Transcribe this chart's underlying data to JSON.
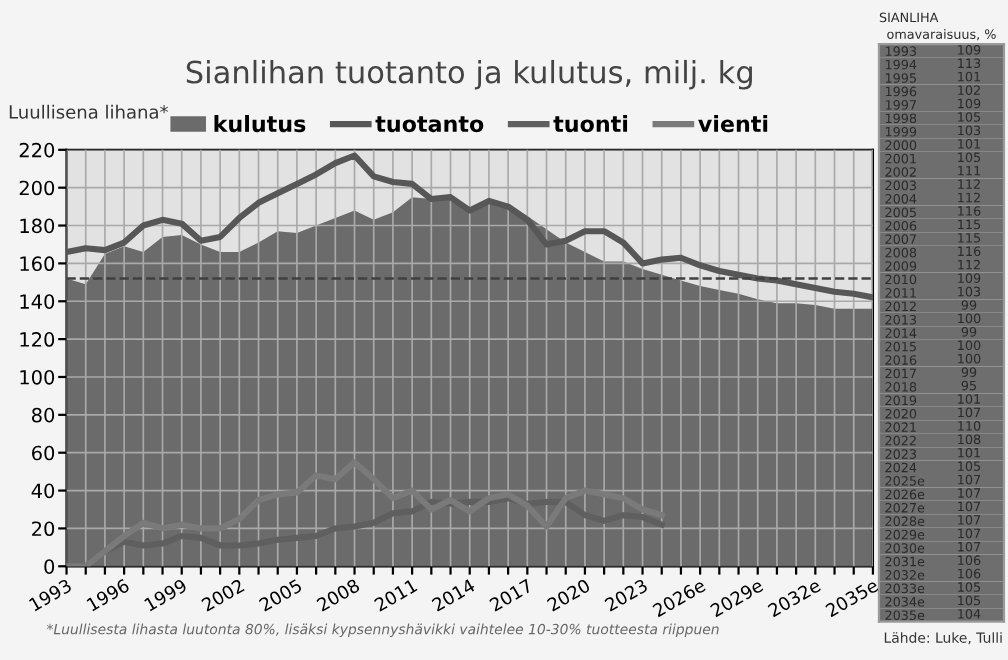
{
  "chart_data": [
    {
      "type": "area",
      "title": "Sianlihan tuotanto ja kulutus, milj. kg",
      "ylabel": "Luullisena lihana*",
      "categories": [
        "1993",
        null,
        null,
        "1996",
        null,
        null,
        "1999",
        null,
        null,
        "2002",
        null,
        null,
        "2005",
        null,
        null,
        "2008",
        null,
        null,
        "2011",
        null,
        null,
        "2014",
        null,
        null,
        "2017",
        null,
        null,
        "2020",
        null,
        null,
        "2023",
        null,
        null,
        "2026e",
        null,
        null,
        "2029e",
        null,
        null,
        "2032e",
        null,
        null,
        "2035e"
      ],
      "series": [
        {
          "name": "kulutus",
          "type": "area",
          "color": "#6b6b6b",
          "values": [
            152,
            149,
            165,
            169,
            166,
            174,
            175,
            170,
            166,
            166,
            171,
            177,
            176,
            180,
            184,
            188,
            183,
            187,
            195,
            194,
            195,
            189,
            193,
            191,
            185,
            178,
            171,
            166,
            161,
            161,
            157,
            154,
            151,
            148,
            146,
            144,
            141,
            139,
            139,
            138,
            136,
            136,
            136
          ]
        },
        {
          "name": "tuotanto",
          "type": "line",
          "color": "#575757",
          "values": [
            166,
            168,
            167,
            171,
            180,
            183,
            181,
            172,
            174,
            184,
            192,
            197,
            202,
            207,
            213,
            217,
            206,
            203,
            202,
            194,
            195,
            188,
            193,
            190,
            183,
            170,
            172,
            177,
            177,
            171,
            160,
            162,
            163,
            159,
            156,
            154,
            152,
            151,
            149,
            147,
            145,
            144,
            142
          ]
        },
        {
          "name": "tuonti",
          "type": "line",
          "color": "#5f5f5f",
          "values": [
            0,
            0,
            8,
            13,
            11,
            12,
            16,
            15,
            11,
            11,
            12,
            14,
            15,
            16,
            20,
            21,
            23,
            28,
            29,
            34,
            33,
            34,
            34,
            36,
            33,
            34,
            34,
            27,
            24,
            27,
            26,
            22,
            null,
            null,
            null,
            null,
            null,
            null,
            null,
            null,
            null,
            null,
            null
          ]
        },
        {
          "name": "vienti",
          "type": "line",
          "color": "#7a7a7a",
          "values": [
            0,
            0,
            8,
            16,
            23,
            20,
            22,
            20,
            20,
            25,
            35,
            38,
            39,
            48,
            46,
            55,
            46,
            36,
            40,
            30,
            35,
            29,
            36,
            38,
            32,
            21,
            36,
            40,
            38,
            36,
            30,
            27,
            null,
            null,
            null,
            null,
            null,
            null,
            null,
            null,
            null,
            null,
            null
          ]
        }
      ],
      "ylim": [
        0,
        220
      ],
      "yticks": [
        0,
        20,
        40,
        60,
        80,
        100,
        120,
        140,
        160,
        180,
        200,
        220
      ],
      "grid": true,
      "legend": "top",
      "ref_lines": [
        {
          "axis": "y",
          "value": 152,
          "color": "#404040",
          "line_style": "dashed"
        }
      ],
      "annotations": [
        "*Luullisesta lihasta luutonta 80%, lisäksi kypsennyshävikki vaihtelee 10-30% tuotteesta riippuen",
        "Lähde: Luke, Tulli"
      ]
    },
    {
      "type": "heatmap",
      "title": "SIANLIHA",
      "categories": [
        "omavaraisuus, %"
      ],
      "data_labels": true,
      "y_categories": [
        "1993",
        "1994",
        "1995",
        "1996",
        "1997",
        "1998",
        "1999",
        "2000",
        "2001",
        "2002",
        "2003",
        "2004",
        "2005",
        "2006",
        "2007",
        "2008",
        "2009",
        "2010",
        "2011",
        "2012",
        "2013",
        "2014",
        "2015",
        "2016",
        "2017",
        "2018",
        "2019",
        "2020",
        "2021",
        "2022",
        "2023",
        "2024",
        "2025e",
        "2026e",
        "2027e",
        "2028e",
        "2029e",
        "2030e",
        "2031e",
        "2032e",
        "2033e",
        "2034e",
        "2035e"
      ],
      "cells": [
        [
          109
        ],
        [
          113
        ],
        [
          101
        ],
        [
          102
        ],
        [
          109
        ],
        [
          105
        ],
        [
          103
        ],
        [
          101
        ],
        [
          105
        ],
        [
          111
        ],
        [
          112
        ],
        [
          112
        ],
        [
          116
        ],
        [
          115
        ],
        [
          115
        ],
        [
          116
        ],
        [
          112
        ],
        [
          109
        ],
        [
          103
        ],
        [
          99
        ],
        [
          100
        ],
        [
          99
        ],
        [
          100
        ],
        [
          100
        ],
        [
          99
        ],
        [
          95
        ],
        [
          101
        ],
        [
          107
        ],
        [
          110
        ],
        [
          108
        ],
        [
          101
        ],
        [
          105
        ],
        [
          107
        ],
        [
          107
        ],
        [
          107
        ],
        [
          107
        ],
        [
          107
        ],
        [
          107
        ],
        [
          106
        ],
        [
          106
        ],
        [
          105
        ],
        [
          105
        ],
        [
          104
        ]
      ]
    }
  ]
}
